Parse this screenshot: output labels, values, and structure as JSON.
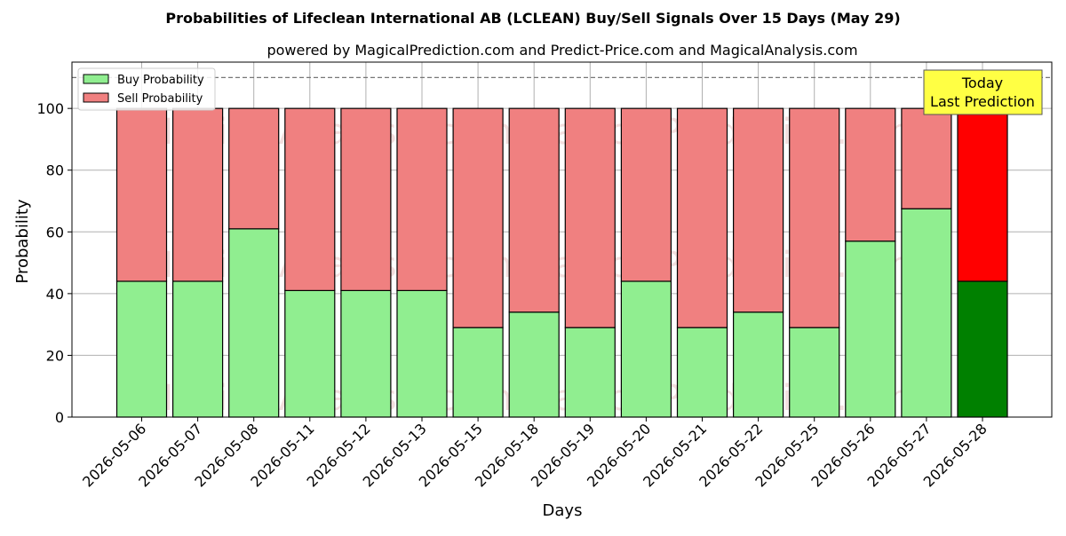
{
  "chart_data": {
    "type": "bar",
    "title": "Probabilities of Lifeclean International AB (LCLEAN) Buy/Sell Signals Over 15 Days (May 29)",
    "subtitle": "powered by MagicalPrediction.com and Predict-Price.com and MagicalAnalysis.com",
    "xlabel": "Days",
    "ylabel": "Probability",
    "ylim": [
      0,
      115
    ],
    "yticks": [
      0,
      20,
      40,
      60,
      80,
      100
    ],
    "grid": true,
    "stacked": true,
    "reference_line": 110,
    "legend_position": "top-left",
    "categories": [
      "2026-05-06",
      "2026-05-07",
      "2026-05-08",
      "2026-05-11",
      "2026-05-12",
      "2026-05-13",
      "2026-05-15",
      "2026-05-18",
      "2026-05-19",
      "2026-05-20",
      "2026-05-21",
      "2026-05-22",
      "2026-05-25",
      "2026-05-26",
      "2026-05-27",
      "2026-05-28"
    ],
    "series": [
      {
        "name": "Buy Probability",
        "color": "#90ee90",
        "highlight_color": "#008000",
        "values": [
          44,
          44,
          61,
          41,
          41,
          41,
          29,
          34,
          29,
          44,
          29,
          34,
          29,
          57,
          67.5,
          44
        ]
      },
      {
        "name": "Sell Probability",
        "color": "#f08080",
        "highlight_color": "#ff0000",
        "values": [
          56,
          56,
          39,
          59,
          59,
          59,
          71,
          66,
          71,
          56,
          71,
          66,
          71,
          43,
          32.5,
          56
        ]
      }
    ],
    "annotation": {
      "line1": "Today",
      "line2": "Last Prediction",
      "color": "#ffff44"
    },
    "watermark": "MagicalAnalysis.com     MagicalPrediction.com"
  }
}
